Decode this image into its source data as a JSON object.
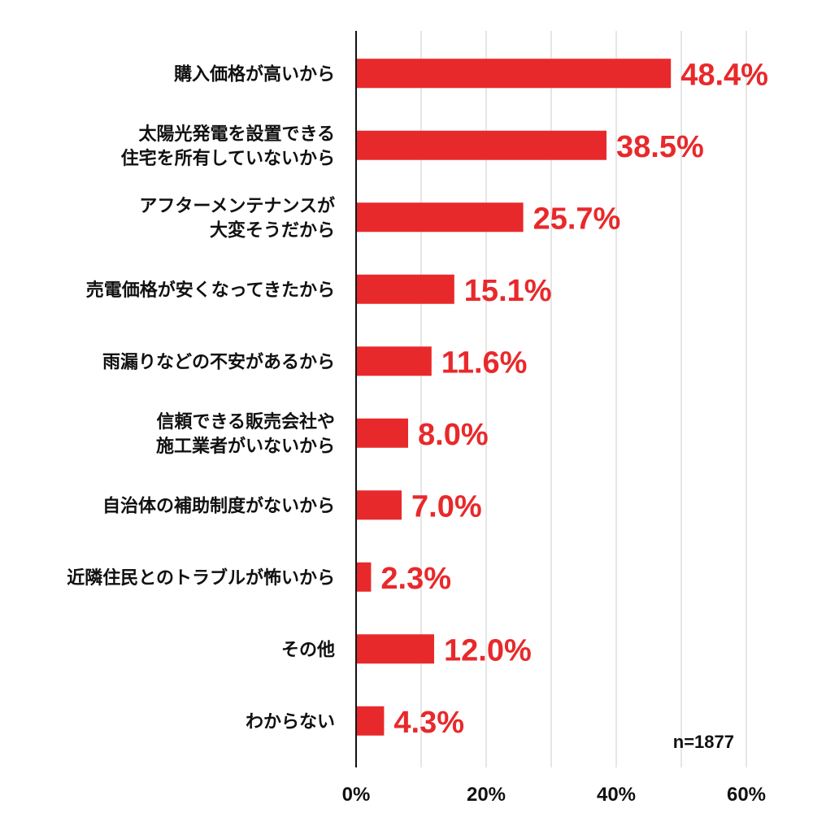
{
  "chart_data": {
    "type": "bar",
    "orientation": "horizontal",
    "categories": [
      [
        "購入価格が高いから"
      ],
      [
        "太陽光発電を設置できる",
        "住宅を所有していないから"
      ],
      [
        "アフターメンテナンスが",
        "大変そうだから"
      ],
      [
        "売電価格が安くなってきたから"
      ],
      [
        "雨漏りなどの不安があるから"
      ],
      [
        "信頼できる販売会社や",
        "施工業者がいないから"
      ],
      [
        "自治体の補助制度がないから"
      ],
      [
        "近隣住民とのトラブルが怖いから"
      ],
      [
        "その他"
      ],
      [
        "わからない"
      ]
    ],
    "values": [
      48.4,
      38.5,
      25.7,
      15.1,
      11.6,
      8.0,
      7.0,
      2.3,
      12.0,
      4.3
    ],
    "value_labels": [
      "48.4%",
      "38.5%",
      "25.7%",
      "15.1%",
      "11.6%",
      "8.0%",
      "7.0%",
      "2.3%",
      "12.0%",
      "4.3%"
    ],
    "xlim": [
      0,
      60
    ],
    "xticks": [
      0,
      20,
      40,
      60
    ],
    "xtick_labels": [
      "0%",
      "20%",
      "40%",
      "60%"
    ],
    "grid": true,
    "sample_note": "n=1877",
    "bar_color": "#e8292b",
    "value_label_color": "#e8292b",
    "gridline_color": "#cccccc",
    "axis_color": "#111111"
  }
}
